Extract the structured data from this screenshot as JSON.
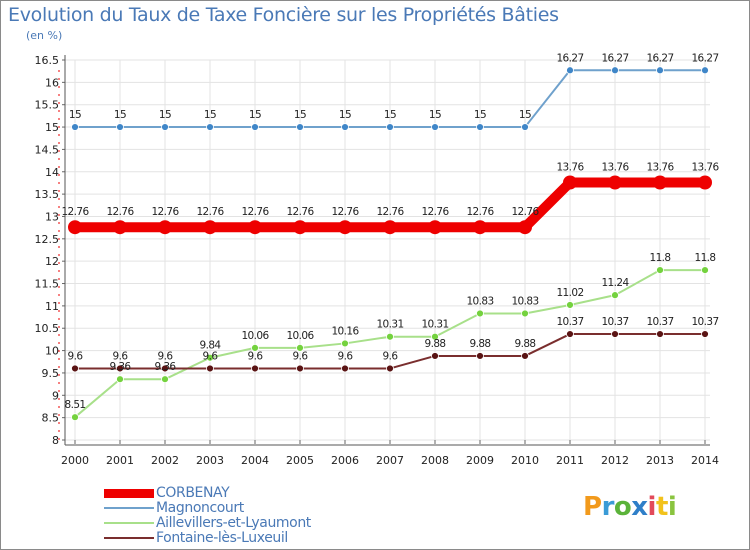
{
  "title": "Evolution du Taux de Taxe Foncière sur les Propriétés Bâties",
  "subtitle": "(en %)",
  "logo": {
    "p": "P",
    "r": "r",
    "o": "o",
    "x": "x",
    "i": "i",
    "t": "t",
    "i2": "i"
  },
  "chart_data": {
    "type": "line",
    "title": "Evolution du Taux de Taxe Foncière sur les Propriétés Bâties",
    "ylabel": "(en %)",
    "xlabel": "",
    "ylim": [
      8,
      16.5
    ],
    "y_ticks": [
      "8",
      "8.5",
      "9",
      "9.5",
      "10",
      "10.5",
      "11",
      "11.5",
      "12",
      "12.5",
      "13",
      "13.5",
      "14",
      "14.5",
      "15",
      "15.5",
      "16",
      "16.5"
    ],
    "y_tick_values": [
      8,
      8.5,
      9,
      9.5,
      10,
      10.5,
      11,
      11.5,
      12,
      12.5,
      13,
      13.5,
      14,
      14.5,
      15,
      15.5,
      16,
      16.5
    ],
    "categories": [
      "2000",
      "2001",
      "2002",
      "2003",
      "2004",
      "2005",
      "2006",
      "2007",
      "2008",
      "2009",
      "2010",
      "2011",
      "2012",
      "2013",
      "2014"
    ],
    "grid": true,
    "legend_position": "bottom-left",
    "series": [
      {
        "name": "CORBENAY",
        "color": "#ee0000",
        "emphasis": true,
        "values": [
          12.76,
          12.76,
          12.76,
          12.76,
          12.76,
          12.76,
          12.76,
          12.76,
          12.76,
          12.76,
          12.76,
          13.76,
          13.76,
          13.76,
          13.76
        ],
        "labels": [
          "12.76",
          "12.76",
          "12.76",
          "12.76",
          "12.76",
          "12.76",
          "12.76",
          "12.76",
          "12.76",
          "12.76",
          "12.76",
          "13.76",
          "13.76",
          "13.76",
          "13.76"
        ]
      },
      {
        "name": "Magnoncourt",
        "color": "#6fa1cc",
        "point_color": "#3f86c8",
        "emphasis": false,
        "values": [
          15,
          15,
          15,
          15,
          15,
          15,
          15,
          15,
          15,
          15,
          15,
          16.27,
          16.27,
          16.27,
          16.27
        ],
        "labels": [
          "15",
          "15",
          "15",
          "15",
          "15",
          "15",
          "15",
          "15",
          "15",
          "15",
          "15",
          "16.27",
          "16.27",
          "16.27",
          "16.27"
        ]
      },
      {
        "name": "Aillevillers-et-Lyaumont",
        "color": "#a8e08a",
        "point_color": "#74d23e",
        "emphasis": false,
        "values": [
          8.51,
          9.36,
          9.36,
          9.84,
          10.06,
          10.06,
          10.16,
          10.31,
          10.31,
          10.83,
          10.83,
          11.02,
          11.24,
          11.8,
          11.8
        ],
        "labels": [
          "8.51",
          "9.36",
          "9.36",
          "9.84",
          "10.06",
          "10.06",
          "10.16",
          "10.31",
          "10.31",
          "10.83",
          "10.83",
          "11.02",
          "11.24",
          "11.8",
          "11.8"
        ]
      },
      {
        "name": "Fontaine-lès-Luxeuil",
        "color": "#7a2e2e",
        "point_color": "#5a1414",
        "emphasis": false,
        "values": [
          9.6,
          9.6,
          9.6,
          9.6,
          9.6,
          9.6,
          9.6,
          9.6,
          9.88,
          9.88,
          9.88,
          10.37,
          10.37,
          10.37,
          10.37
        ],
        "labels": [
          "9.6",
          "9.6",
          "9.6",
          "9.6",
          "9.6",
          "9.6",
          "9.6",
          "9.6",
          "9.88",
          "9.88",
          "9.88",
          "10.37",
          "10.37",
          "10.37",
          "10.37"
        ]
      }
    ]
  }
}
